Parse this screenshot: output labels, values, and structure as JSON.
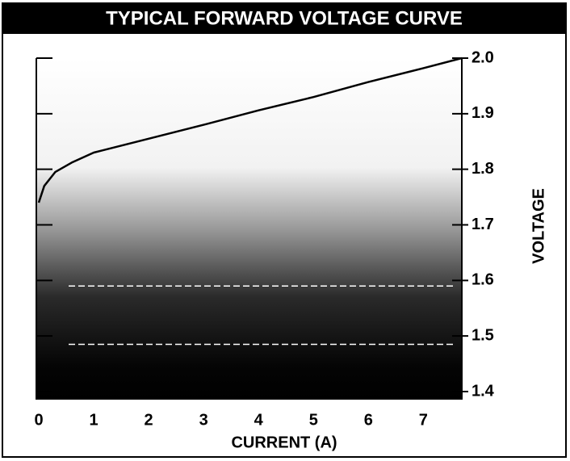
{
  "chart_data": {
    "type": "line",
    "title": "TYPICAL FORWARD VOLTAGE CURVE",
    "x_label": "CURRENT (A)",
    "y_label": "VOLTAGE",
    "x": [
      0,
      0.1,
      0.3,
      0.6,
      1,
      2,
      3,
      4,
      5,
      6,
      7,
      7.7
    ],
    "values": [
      1.74,
      1.77,
      1.795,
      1.812,
      1.83,
      1.855,
      1.88,
      1.906,
      1.93,
      1.957,
      1.982,
      2.0
    ],
    "color": "#000000",
    "hlines": [
      1.59,
      1.485
    ],
    "xlim": [
      0,
      7.7
    ],
    "xticks": [
      0,
      1,
      2,
      3,
      4,
      5,
      6,
      7
    ],
    "ylim": [
      1.4,
      2.0
    ],
    "yticks": [
      1.4,
      1.5,
      1.6,
      1.7,
      1.8,
      1.9,
      {
        "value": 2.0,
        "label": "2.0"
      }
    ]
  }
}
